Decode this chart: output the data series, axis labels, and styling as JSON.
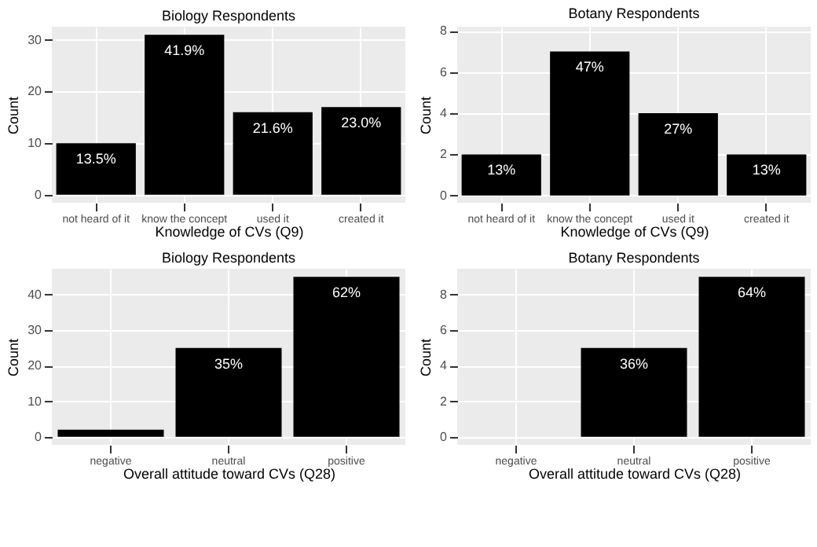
{
  "chart_data": [
    {
      "type": "bar",
      "title": "Biology Respondents",
      "xlabel": "Knowledge of CVs (Q9)",
      "ylabel": "Count",
      "categories": [
        "not heard of it",
        "know the concept",
        "used it",
        "created it"
      ],
      "values": [
        10,
        31,
        16,
        17
      ],
      "color": "#000000",
      "ylim": [
        -1.55,
        32.55
      ],
      "yticks": [
        0,
        10,
        20,
        30
      ],
      "grid": true,
      "annotations": [
        {
          "text": "13.5%",
          "x": "not heard of it",
          "y": 10
        },
        {
          "text": "41.9%",
          "x": "know the concept",
          "y": 31
        },
        {
          "text": "21.6%",
          "x": "used it",
          "y": 16
        },
        {
          "text": "23.0%",
          "x": "created it",
          "y": 17
        }
      ]
    },
    {
      "type": "bar",
      "title": "Botany Respondents",
      "xlabel": "Knowledge of CVs (Q9)",
      "ylabel": "Count",
      "categories": [
        "not heard of it",
        "know the concept",
        "used it",
        "created it"
      ],
      "values": [
        2,
        7,
        4,
        2
      ],
      "color": "#000000",
      "ylim": [
        -0.35,
        8.2
      ],
      "yticks": [
        0,
        2,
        4,
        6,
        8
      ],
      "grid": true,
      "annotations": [
        {
          "text": "13%",
          "x": "not heard of it",
          "y": 2
        },
        {
          "text": "47%",
          "x": "know the concept",
          "y": 7
        },
        {
          "text": "27%",
          "x": "used it",
          "y": 4
        },
        {
          "text": "13%",
          "x": "created it",
          "y": 2
        }
      ]
    },
    {
      "type": "bar",
      "title": "Biology Respondents",
      "xlabel": "Overall attitude toward CVs (Q28)",
      "ylabel": "Count",
      "categories": [
        "negative",
        "neutral",
        "positive"
      ],
      "values": [
        2,
        25,
        45
      ],
      "color": "#000000",
      "ylim": [
        -2.25,
        47.25
      ],
      "yticks": [
        0,
        10,
        20,
        30,
        40
      ],
      "grid": true,
      "annotations": [
        {
          "text": "35%",
          "x": "neutral",
          "y": 25
        },
        {
          "text": "62%",
          "x": "positive",
          "y": 45
        }
      ]
    },
    {
      "type": "bar",
      "title": "Botany Respondents",
      "xlabel": "Overall attitude toward CVs (Q28)",
      "ylabel": "Count",
      "categories": [
        "negative",
        "neutral",
        "positive"
      ],
      "values": [
        0,
        5,
        9
      ],
      "color": "#000000",
      "ylim": [
        -0.45,
        9.45
      ],
      "yticks": [
        0,
        2,
        4,
        6,
        8
      ],
      "grid": true,
      "annotations": [
        {
          "text": "36%",
          "x": "neutral",
          "y": 5
        },
        {
          "text": "64%",
          "x": "positive",
          "y": 9
        }
      ]
    }
  ]
}
